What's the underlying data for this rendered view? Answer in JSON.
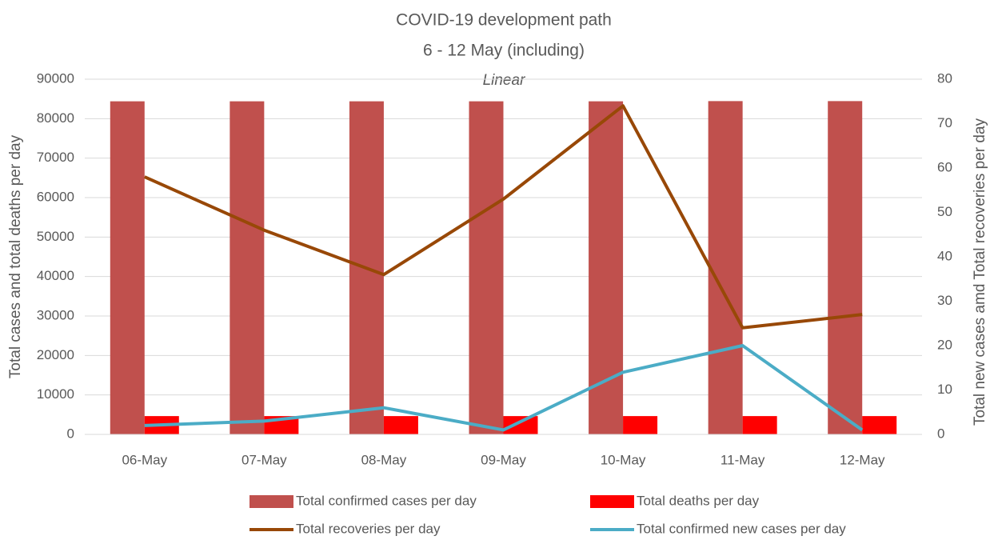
{
  "chart_data": {
    "type": "bar-line",
    "title": "COVID-19 development path",
    "subtitle": "6  - 12 May (including)",
    "annotation": "Linear",
    "y_label": "Total cases and total deaths per day",
    "y2_label": "Total new cases amd Total recoveries per day",
    "categories": [
      "06-May",
      "07-May",
      "08-May",
      "09-May",
      "10-May",
      "11-May",
      "12-May"
    ],
    "series": [
      {
        "name": "Total confirmed cases per day",
        "color": "#c0504d",
        "kind": "bar",
        "values": [
          84400,
          84400,
          84400,
          84400,
          84400,
          84450,
          84450
        ]
      },
      {
        "name": "Total deaths per day",
        "color": "#ff0000",
        "kind": "bar",
        "values": [
          4640,
          4640,
          4640,
          4640,
          4640,
          4640,
          4640
        ]
      },
      {
        "name": "Total recoveries per day",
        "color": "#984807",
        "kind": "line",
        "axis": "y2",
        "values": [
          58,
          46,
          36,
          53,
          74,
          24,
          27
        ]
      },
      {
        "name": "Total confirmed new cases per day",
        "color": "#4bacc6",
        "kind": "line",
        "axis": "y2",
        "values": [
          2,
          3,
          6,
          1,
          14,
          20,
          1
        ]
      }
    ],
    "ylim": [
      0,
      90000
    ],
    "yticks": [
      0,
      10000,
      20000,
      30000,
      40000,
      50000,
      60000,
      70000,
      80000,
      90000
    ],
    "y2lim": [
      0,
      80
    ],
    "y2ticks": [
      0,
      10,
      20,
      30,
      40,
      50,
      60,
      70,
      80
    ],
    "grid": true,
    "legend": "bottom"
  }
}
